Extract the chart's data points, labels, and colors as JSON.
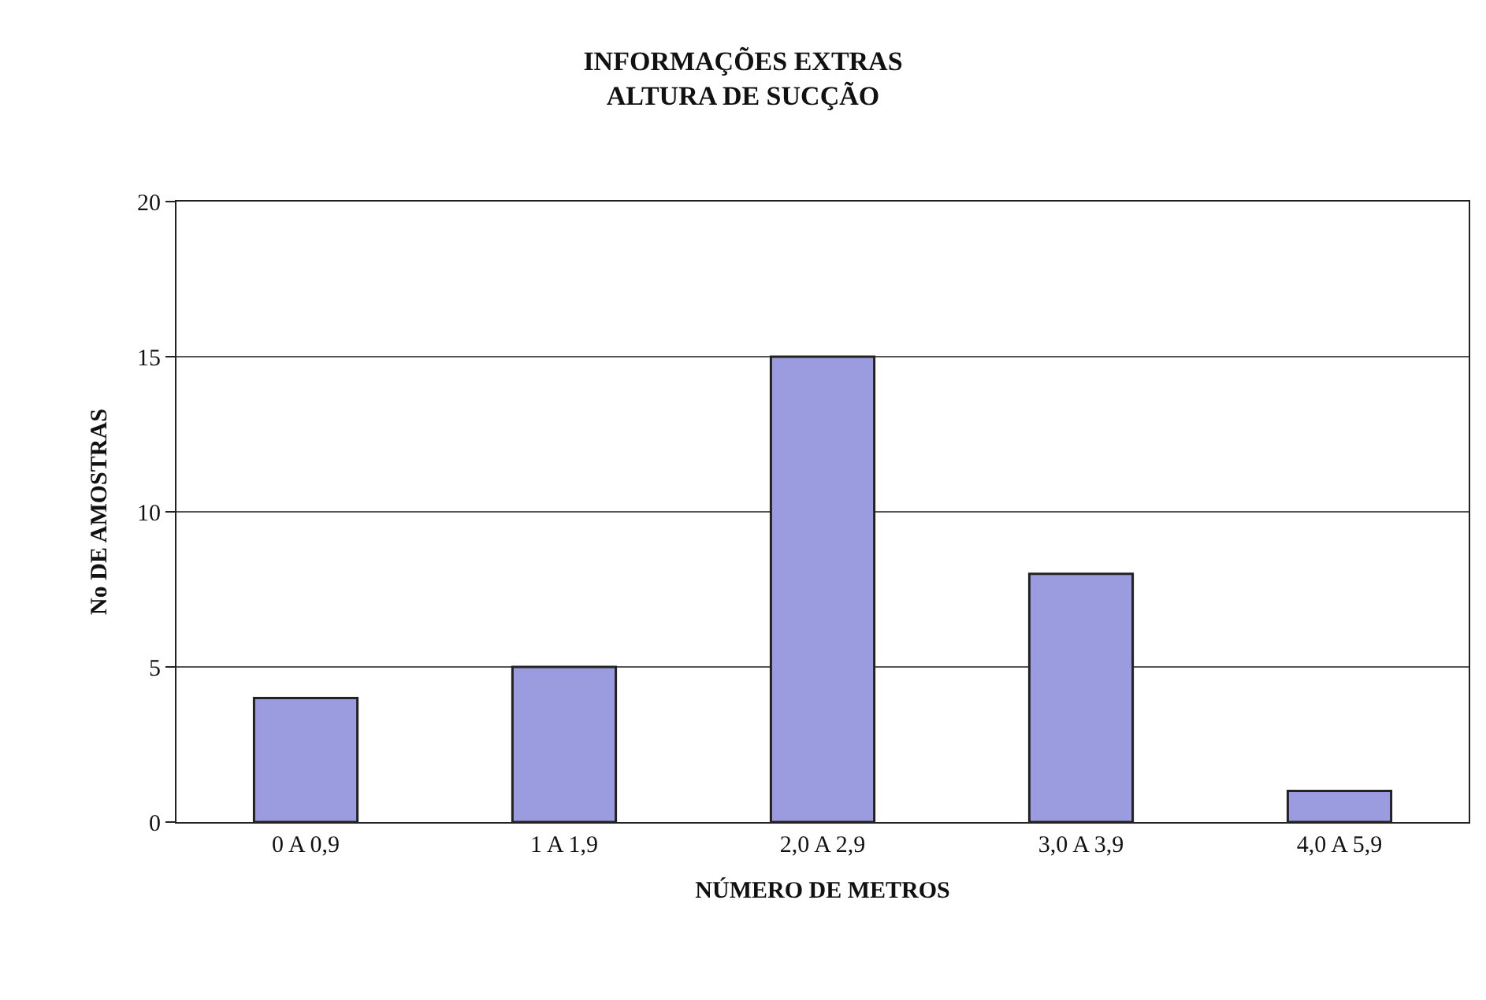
{
  "chart_data": {
    "type": "bar",
    "title": "INFORMAÇÕES EXTRAS",
    "subtitle": "ALTURA DE SUCÇÃO",
    "xlabel": "NÚMERO DE METROS",
    "ylabel": "No DE AMOSTRAS",
    "categories": [
      "0 A 0,9",
      "1 A 1,9",
      "2,0 A 2,9",
      "3,0 A 3,9",
      "4,0 A 5,9"
    ],
    "values": [
      4,
      5,
      15,
      8,
      1
    ],
    "color": "#9b9be0",
    "ylim": [
      0,
      20
    ],
    "yticks": [
      0,
      5,
      10,
      15,
      20
    ],
    "grid": "y"
  }
}
